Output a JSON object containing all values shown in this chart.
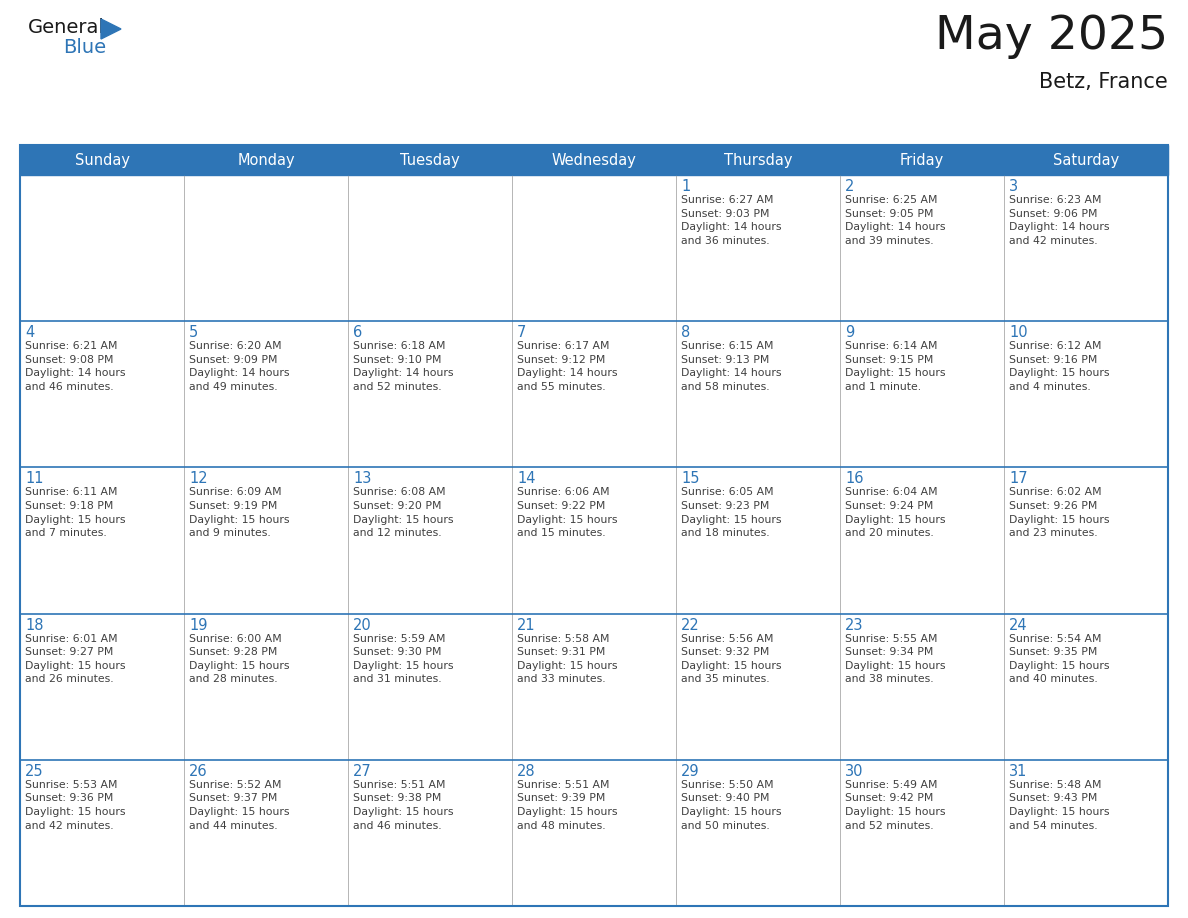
{
  "title": "May 2025",
  "subtitle": "Betz, France",
  "header_color": "#2E75B6",
  "header_text_color": "#FFFFFF",
  "background_color": "#FFFFFF",
  "cell_bg_color": "#FFFFFF",
  "day_number_color": "#2E75B6",
  "text_color": "#404040",
  "border_color": "#2E75B6",
  "grid_line_color": "#AAAAAA",
  "days_of_week": [
    "Sunday",
    "Monday",
    "Tuesday",
    "Wednesday",
    "Thursday",
    "Friday",
    "Saturday"
  ],
  "weeks": [
    [
      {
        "day": "",
        "info": ""
      },
      {
        "day": "",
        "info": ""
      },
      {
        "day": "",
        "info": ""
      },
      {
        "day": "",
        "info": ""
      },
      {
        "day": "1",
        "info": "Sunrise: 6:27 AM\nSunset: 9:03 PM\nDaylight: 14 hours\nand 36 minutes."
      },
      {
        "day": "2",
        "info": "Sunrise: 6:25 AM\nSunset: 9:05 PM\nDaylight: 14 hours\nand 39 minutes."
      },
      {
        "day": "3",
        "info": "Sunrise: 6:23 AM\nSunset: 9:06 PM\nDaylight: 14 hours\nand 42 minutes."
      }
    ],
    [
      {
        "day": "4",
        "info": "Sunrise: 6:21 AM\nSunset: 9:08 PM\nDaylight: 14 hours\nand 46 minutes."
      },
      {
        "day": "5",
        "info": "Sunrise: 6:20 AM\nSunset: 9:09 PM\nDaylight: 14 hours\nand 49 minutes."
      },
      {
        "day": "6",
        "info": "Sunrise: 6:18 AM\nSunset: 9:10 PM\nDaylight: 14 hours\nand 52 minutes."
      },
      {
        "day": "7",
        "info": "Sunrise: 6:17 AM\nSunset: 9:12 PM\nDaylight: 14 hours\nand 55 minutes."
      },
      {
        "day": "8",
        "info": "Sunrise: 6:15 AM\nSunset: 9:13 PM\nDaylight: 14 hours\nand 58 minutes."
      },
      {
        "day": "9",
        "info": "Sunrise: 6:14 AM\nSunset: 9:15 PM\nDaylight: 15 hours\nand 1 minute."
      },
      {
        "day": "10",
        "info": "Sunrise: 6:12 AM\nSunset: 9:16 PM\nDaylight: 15 hours\nand 4 minutes."
      }
    ],
    [
      {
        "day": "11",
        "info": "Sunrise: 6:11 AM\nSunset: 9:18 PM\nDaylight: 15 hours\nand 7 minutes."
      },
      {
        "day": "12",
        "info": "Sunrise: 6:09 AM\nSunset: 9:19 PM\nDaylight: 15 hours\nand 9 minutes."
      },
      {
        "day": "13",
        "info": "Sunrise: 6:08 AM\nSunset: 9:20 PM\nDaylight: 15 hours\nand 12 minutes."
      },
      {
        "day": "14",
        "info": "Sunrise: 6:06 AM\nSunset: 9:22 PM\nDaylight: 15 hours\nand 15 minutes."
      },
      {
        "day": "15",
        "info": "Sunrise: 6:05 AM\nSunset: 9:23 PM\nDaylight: 15 hours\nand 18 minutes."
      },
      {
        "day": "16",
        "info": "Sunrise: 6:04 AM\nSunset: 9:24 PM\nDaylight: 15 hours\nand 20 minutes."
      },
      {
        "day": "17",
        "info": "Sunrise: 6:02 AM\nSunset: 9:26 PM\nDaylight: 15 hours\nand 23 minutes."
      }
    ],
    [
      {
        "day": "18",
        "info": "Sunrise: 6:01 AM\nSunset: 9:27 PM\nDaylight: 15 hours\nand 26 minutes."
      },
      {
        "day": "19",
        "info": "Sunrise: 6:00 AM\nSunset: 9:28 PM\nDaylight: 15 hours\nand 28 minutes."
      },
      {
        "day": "20",
        "info": "Sunrise: 5:59 AM\nSunset: 9:30 PM\nDaylight: 15 hours\nand 31 minutes."
      },
      {
        "day": "21",
        "info": "Sunrise: 5:58 AM\nSunset: 9:31 PM\nDaylight: 15 hours\nand 33 minutes."
      },
      {
        "day": "22",
        "info": "Sunrise: 5:56 AM\nSunset: 9:32 PM\nDaylight: 15 hours\nand 35 minutes."
      },
      {
        "day": "23",
        "info": "Sunrise: 5:55 AM\nSunset: 9:34 PM\nDaylight: 15 hours\nand 38 minutes."
      },
      {
        "day": "24",
        "info": "Sunrise: 5:54 AM\nSunset: 9:35 PM\nDaylight: 15 hours\nand 40 minutes."
      }
    ],
    [
      {
        "day": "25",
        "info": "Sunrise: 5:53 AM\nSunset: 9:36 PM\nDaylight: 15 hours\nand 42 minutes."
      },
      {
        "day": "26",
        "info": "Sunrise: 5:52 AM\nSunset: 9:37 PM\nDaylight: 15 hours\nand 44 minutes."
      },
      {
        "day": "27",
        "info": "Sunrise: 5:51 AM\nSunset: 9:38 PM\nDaylight: 15 hours\nand 46 minutes."
      },
      {
        "day": "28",
        "info": "Sunrise: 5:51 AM\nSunset: 9:39 PM\nDaylight: 15 hours\nand 48 minutes."
      },
      {
        "day": "29",
        "info": "Sunrise: 5:50 AM\nSunset: 9:40 PM\nDaylight: 15 hours\nand 50 minutes."
      },
      {
        "day": "30",
        "info": "Sunrise: 5:49 AM\nSunset: 9:42 PM\nDaylight: 15 hours\nand 52 minutes."
      },
      {
        "day": "31",
        "info": "Sunrise: 5:48 AM\nSunset: 9:43 PM\nDaylight: 15 hours\nand 54 minutes."
      }
    ]
  ],
  "logo_text1": "General",
  "logo_text2": "Blue",
  "logo_triangle_color": "#2E75B6",
  "logo_text1_color": "#1a1a1a"
}
